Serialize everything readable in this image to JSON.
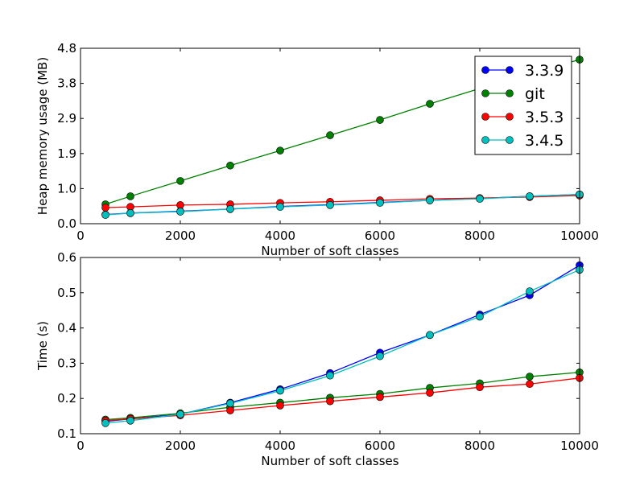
{
  "chart_data": [
    {
      "type": "line",
      "title": "",
      "xlabel": "Number of soft classes",
      "ylabel": "Heap memory usage (MB)",
      "xlim": [
        0,
        10000
      ],
      "ylim": [
        0,
        4.8
      ],
      "xticks": [
        0,
        2000,
        4000,
        6000,
        8000,
        10000
      ],
      "yticks": [
        0.0,
        0.96,
        1.92,
        2.88,
        3.84,
        4.8
      ],
      "yticklabels": [
        "0.0",
        "1.0",
        "1.9",
        "2.9",
        "3.8",
        "4.8"
      ],
      "legend": "top-right",
      "x": [
        500,
        1000,
        2000,
        3000,
        4000,
        5000,
        6000,
        7000,
        8000,
        9000,
        10000
      ],
      "series": [
        {
          "name": "3.3.9",
          "color": "#0000ff",
          "values": [
            0.25,
            0.29,
            0.34,
            0.4,
            0.47,
            0.52,
            0.58,
            0.64,
            0.69,
            0.75,
            0.8
          ]
        },
        {
          "name": "git",
          "color": "#008000",
          "values": [
            0.53,
            0.75,
            1.17,
            1.59,
            2.0,
            2.42,
            2.84,
            3.28,
            3.7,
            4.12,
            4.49
          ]
        },
        {
          "name": "3.5.3",
          "color": "#ff0000",
          "values": [
            0.44,
            0.46,
            0.51,
            0.53,
            0.57,
            0.6,
            0.64,
            0.68,
            0.7,
            0.73,
            0.77
          ]
        },
        {
          "name": "3.4.5",
          "color": "#00bfbf",
          "values": [
            0.24,
            0.29,
            0.33,
            0.4,
            0.46,
            0.51,
            0.57,
            0.64,
            0.68,
            0.75,
            0.8
          ]
        }
      ]
    },
    {
      "type": "line",
      "title": "",
      "xlabel": "Number of soft classes",
      "ylabel": "Time (s)",
      "xlim": [
        0,
        10000
      ],
      "ylim": [
        0.1,
        0.6
      ],
      "xticks": [
        0,
        2000,
        4000,
        6000,
        8000,
        10000
      ],
      "yticks": [
        0.1,
        0.2,
        0.3,
        0.4,
        0.5,
        0.6
      ],
      "yticklabels": [
        "0.1",
        "0.2",
        "0.3",
        "0.4",
        "0.5",
        "0.6"
      ],
      "x": [
        500,
        1000,
        2000,
        3000,
        4000,
        5000,
        6000,
        7000,
        8000,
        9000,
        10000
      ],
      "series": [
        {
          "name": "3.3.9",
          "color": "#0000ff",
          "values": [
            0.135,
            0.142,
            0.155,
            0.188,
            0.226,
            0.272,
            0.33,
            0.38,
            0.438,
            0.493,
            0.578
          ]
        },
        {
          "name": "git",
          "color": "#008000",
          "values": [
            0.14,
            0.145,
            0.158,
            0.175,
            0.188,
            0.202,
            0.213,
            0.23,
            0.243,
            0.262,
            0.274
          ]
        },
        {
          "name": "3.5.3",
          "color": "#ff0000",
          "values": [
            0.137,
            0.142,
            0.152,
            0.166,
            0.18,
            0.192,
            0.204,
            0.216,
            0.232,
            0.241,
            0.258
          ]
        },
        {
          "name": "3.4.5",
          "color": "#00bfbf",
          "values": [
            0.13,
            0.137,
            0.155,
            0.186,
            0.222,
            0.265,
            0.32,
            0.38,
            0.432,
            0.504,
            0.565
          ]
        }
      ]
    }
  ]
}
